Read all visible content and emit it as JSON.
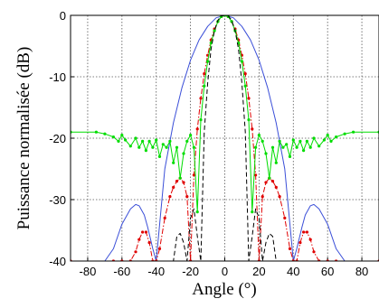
{
  "chart_data": {
    "type": "line",
    "title": "",
    "xlabel": "Angle (°)",
    "ylabel": "Puissance normalisée (dB)",
    "xlim": [
      -90,
      90
    ],
    "ylim": [
      -40,
      0
    ],
    "xticks": [
      -80,
      -60,
      -40,
      -20,
      0,
      20,
      40,
      60,
      80
    ],
    "xtick_labels": [
      "-80",
      "-60",
      "-40",
      "-20",
      "0",
      "20",
      "40",
      "60",
      "80"
    ],
    "yticks": [
      0,
      -10,
      -20,
      -30,
      -40
    ],
    "ytick_labels": [
      "0",
      "-10",
      "-20",
      "-30",
      "-40"
    ],
    "grid": true,
    "legend": "none",
    "series": [
      {
        "color": "#3b4fd8",
        "line_style": "solid",
        "marker": "none",
        "x": [
          -90,
          -85,
          -80,
          -75,
          -70,
          -65,
          -60,
          -55,
          -52,
          -50,
          -47,
          -45,
          -42,
          -40,
          -38,
          -35,
          -30,
          -25,
          -20,
          -15,
          -10,
          -5,
          0,
          5,
          10,
          15,
          20,
          25,
          30,
          35,
          38,
          40,
          42,
          45,
          47,
          50,
          52,
          55,
          60,
          65,
          70,
          75,
          80,
          85,
          90
        ],
        "y": [
          -40,
          -40,
          -40,
          -40,
          -40,
          -38,
          -34,
          -31.5,
          -30.8,
          -31,
          -32.5,
          -34.5,
          -38,
          -40,
          -34,
          -25,
          -17.5,
          -11.8,
          -7.3,
          -4,
          -1.8,
          -0.4,
          0,
          -0.4,
          -1.8,
          -4,
          -7.3,
          -11.8,
          -17.5,
          -25,
          -34,
          -40,
          -38,
          -34.5,
          -32.5,
          -31,
          -30.8,
          -31.5,
          -34,
          -38,
          -40,
          -40,
          -40,
          -40,
          -40
        ]
      },
      {
        "color": "#e00000",
        "line_style": "dashdot",
        "marker": "dot",
        "x": [
          -90,
          -65,
          -60,
          -55,
          -52,
          -50,
          -48,
          -46,
          -44,
          -42,
          -40,
          -38,
          -35,
          -32,
          -30,
          -28,
          -26,
          -24,
          -22,
          -20,
          -18,
          -16,
          -14,
          -12,
          -10,
          -8,
          -6,
          -4,
          -2,
          0,
          2,
          4,
          6,
          8,
          10,
          12,
          14,
          16,
          18,
          20,
          22,
          24,
          26,
          28,
          30,
          32,
          35,
          38,
          40,
          42,
          44,
          46,
          48,
          50,
          52,
          55,
          60,
          65,
          90
        ],
        "y": [
          -40,
          -40,
          -40,
          -40,
          -38.5,
          -36.5,
          -35.3,
          -35.3,
          -37,
          -40,
          -40,
          -38,
          -33,
          -29.5,
          -28,
          -27,
          -26.5,
          -27.2,
          -29.5,
          -40,
          -26,
          -18.5,
          -13.5,
          -9.5,
          -6.5,
          -4,
          -2.2,
          -1,
          -0.2,
          0,
          -0.2,
          -1,
          -2.2,
          -4,
          -6.5,
          -9.5,
          -13.5,
          -18.5,
          -26,
          -40,
          -29.5,
          -27.2,
          -26.5,
          -27,
          -28,
          -29.5,
          -33,
          -38,
          -40,
          -40,
          -37,
          -35.3,
          -35.3,
          -36.5,
          -38.5,
          -40,
          -40,
          -40,
          -40
        ]
      },
      {
        "color": "#00dd00",
        "line_style": "solid",
        "marker": "dot",
        "x": [
          -90,
          -75,
          -70,
          -65,
          -62,
          -60,
          -58,
          -55,
          -52,
          -50,
          -48,
          -46,
          -44,
          -42,
          -40,
          -38,
          -36,
          -34,
          -32,
          -30,
          -28,
          -26,
          -24,
          -22,
          -20,
          -18,
          -16,
          -14,
          -12,
          -10,
          -8,
          -6,
          -4,
          -2,
          0,
          2,
          4,
          6,
          8,
          10,
          12,
          14,
          16,
          18,
          20,
          22,
          24,
          26,
          28,
          30,
          32,
          34,
          36,
          38,
          40,
          42,
          44,
          46,
          48,
          50,
          52,
          55,
          58,
          60,
          62,
          65,
          70,
          75,
          90
        ],
        "y": [
          -19,
          -19,
          -19.3,
          -19.8,
          -20.5,
          -19.5,
          -20.3,
          -21.3,
          -20,
          -21.5,
          -20.5,
          -22,
          -20.5,
          -21.5,
          -20.3,
          -23,
          -21,
          -21.5,
          -20.5,
          -24,
          -21.5,
          -26.5,
          -22.5,
          -20.5,
          -19.5,
          -21.5,
          -32,
          -17,
          -11.5,
          -7.5,
          -4.5,
          -2.5,
          -1,
          -0.2,
          0,
          -0.2,
          -1,
          -2.5,
          -4.5,
          -7.5,
          -11.5,
          -17,
          -32,
          -21.5,
          -19.5,
          -20.5,
          -22.5,
          -26.5,
          -21.5,
          -24,
          -20.5,
          -21.5,
          -21,
          -23,
          -20.3,
          -21.5,
          -20.5,
          -22,
          -20.5,
          -21.5,
          -20,
          -21.3,
          -20.3,
          -19.5,
          -20.5,
          -19.8,
          -19.3,
          -19,
          -19
        ]
      },
      {
        "color": "#000000",
        "line_style": "dashed",
        "marker": "none",
        "x": [
          -90,
          -30,
          -28,
          -26,
          -24,
          -22,
          -20,
          -18,
          -16,
          -14,
          -12,
          -10,
          -8,
          -6,
          -4,
          -2,
          0,
          2,
          4,
          6,
          8,
          10,
          12,
          14,
          16,
          18,
          20,
          22,
          24,
          26,
          28,
          30,
          90
        ],
        "y": [
          -40,
          -40,
          -36,
          -35.5,
          -37,
          -40,
          -33,
          -31.5,
          -36,
          -40,
          -19,
          -11,
          -5.5,
          -2.5,
          -0.8,
          -0.1,
          0,
          -0.1,
          -0.8,
          -2.5,
          -5.5,
          -11,
          -19,
          -40,
          -36,
          -31.5,
          -33,
          -40,
          -37,
          -35.5,
          -36,
          -40,
          -40
        ]
      }
    ]
  }
}
